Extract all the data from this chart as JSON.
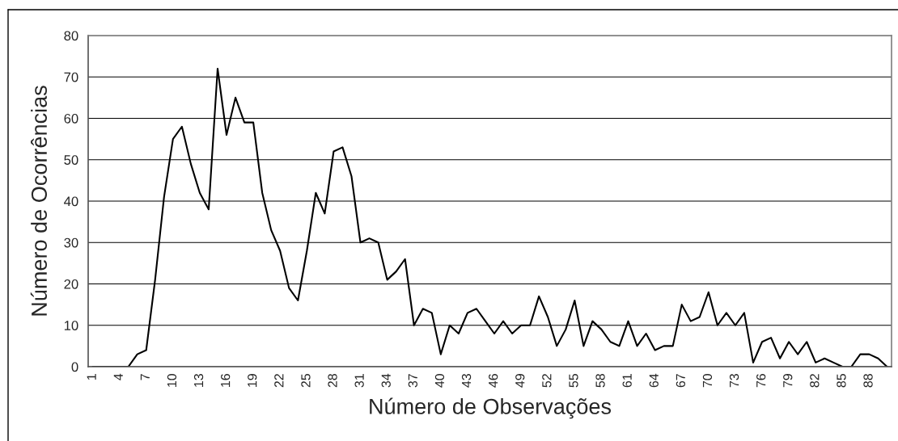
{
  "chart_data": {
    "type": "line",
    "xlabel": "Número de Observações",
    "ylabel": "Número de Ocorrências",
    "categories": [
      "1",
      null,
      null,
      "4",
      null,
      null,
      "7",
      null,
      null,
      "10",
      null,
      null,
      "13",
      null,
      null,
      "16",
      null,
      null,
      "19",
      null,
      null,
      "22",
      null,
      null,
      "25",
      null,
      null,
      "28",
      null,
      null,
      "31",
      null,
      null,
      "34",
      null,
      null,
      "37",
      null,
      null,
      "40",
      null,
      null,
      "43",
      null,
      null,
      "46",
      null,
      null,
      "49",
      null,
      null,
      "52",
      null,
      null,
      "55",
      null,
      null,
      "58",
      null,
      null,
      "61",
      null,
      null,
      "64",
      null,
      null,
      "67",
      null,
      null,
      "70",
      null,
      null,
      "73",
      null,
      null,
      "76",
      null,
      null,
      "79",
      null,
      null,
      "82",
      null,
      null,
      "85",
      null,
      null,
      "88",
      null,
      null
    ],
    "series": [
      {
        "color": "#000000",
        "values": [
          0,
          0,
          0,
          0,
          0,
          3,
          4,
          21,
          41,
          55,
          58,
          49,
          42,
          38,
          72,
          56,
          65,
          59,
          59,
          42,
          33,
          28,
          19,
          16,
          28,
          42,
          37,
          52,
          53,
          46,
          30,
          31,
          30,
          21,
          23,
          26,
          10,
          14,
          13,
          3,
          10,
          8,
          13,
          14,
          11,
          8,
          11,
          8,
          10,
          10,
          17,
          12,
          5,
          9,
          16,
          5,
          11,
          9,
          6,
          5,
          11,
          5,
          8,
          4,
          5,
          5,
          15,
          11,
          12,
          18,
          10,
          13,
          10,
          13,
          1,
          6,
          7,
          2,
          6,
          3,
          6,
          1,
          2,
          1,
          0,
          0,
          3,
          3,
          2,
          0
        ]
      }
    ],
    "ylim": [
      0,
      80
    ],
    "yticks": [
      0,
      10,
      20,
      30,
      40,
      50,
      60,
      70,
      80
    ],
    "grid": "y",
    "line_style": "solid"
  }
}
